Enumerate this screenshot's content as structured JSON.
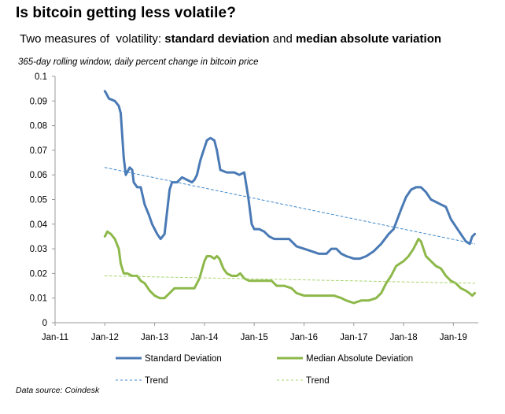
{
  "header": {
    "title": "Is bitcoin getting less volatile?",
    "subtitle_prefix": "Two measures of  volatility: ",
    "subtitle_bold1": "standard deviation",
    "subtitle_mid": " and ",
    "subtitle_bold2": "median absolute variation",
    "note": "365-day rolling window, daily percent change in bitcoin price",
    "source": "Data source: Coindesk"
  },
  "chart_data": {
    "type": "line",
    "title": "Is bitcoin getting less volatile?",
    "subtitle": "Two measures of  volatility: standard deviation and median absolute variation",
    "x_ticks": [
      "Jan-11",
      "Jan-12",
      "Jan-13",
      "Jan-14",
      "Jan-15",
      "Jan-16",
      "Jan-17",
      "Jan-18",
      "Jan-19"
    ],
    "xlim": [
      2011.0,
      2019.5
    ],
    "y_ticks": [
      "0",
      "0.01",
      "0.02",
      "0.03",
      "0.04",
      "0.05",
      "0.06",
      "0.07",
      "0.08",
      "0.09",
      "0.1"
    ],
    "ylim": [
      0,
      0.1
    ],
    "grid": false,
    "legend_position": "bottom",
    "colors": {
      "std": "#4a7ab5",
      "mad": "#8db84a",
      "std_trend": "#3f87c9",
      "mad_trend": "#a9d46e"
    },
    "series": [
      {
        "name": "Standard Deviation",
        "points": [
          [
            2012.0,
            0.094
          ],
          [
            2012.03,
            0.093
          ],
          [
            2012.08,
            0.091
          ],
          [
            2012.2,
            0.09
          ],
          [
            2012.28,
            0.088
          ],
          [
            2012.32,
            0.085
          ],
          [
            2012.38,
            0.067
          ],
          [
            2012.42,
            0.06
          ],
          [
            2012.5,
            0.063
          ],
          [
            2012.55,
            0.062
          ],
          [
            2012.58,
            0.057
          ],
          [
            2012.65,
            0.055
          ],
          [
            2012.72,
            0.055
          ],
          [
            2012.8,
            0.048
          ],
          [
            2012.88,
            0.044
          ],
          [
            2012.95,
            0.04
          ],
          [
            2013.05,
            0.036
          ],
          [
            2013.12,
            0.034
          ],
          [
            2013.2,
            0.036
          ],
          [
            2013.25,
            0.045
          ],
          [
            2013.3,
            0.054
          ],
          [
            2013.35,
            0.057
          ],
          [
            2013.45,
            0.057
          ],
          [
            2013.55,
            0.059
          ],
          [
            2013.65,
            0.058
          ],
          [
            2013.75,
            0.057
          ],
          [
            2013.8,
            0.058
          ],
          [
            2013.85,
            0.06
          ],
          [
            2013.92,
            0.066
          ],
          [
            2014.0,
            0.071
          ],
          [
            2014.05,
            0.074
          ],
          [
            2014.12,
            0.075
          ],
          [
            2014.2,
            0.074
          ],
          [
            2014.25,
            0.07
          ],
          [
            2014.32,
            0.062
          ],
          [
            2014.45,
            0.061
          ],
          [
            2014.6,
            0.061
          ],
          [
            2014.7,
            0.06
          ],
          [
            2014.8,
            0.061
          ],
          [
            2014.88,
            0.051
          ],
          [
            2014.95,
            0.04
          ],
          [
            2015.0,
            0.038
          ],
          [
            2015.1,
            0.038
          ],
          [
            2015.2,
            0.037
          ],
          [
            2015.3,
            0.035
          ],
          [
            2015.4,
            0.034
          ],
          [
            2015.55,
            0.034
          ],
          [
            2015.7,
            0.034
          ],
          [
            2015.85,
            0.031
          ],
          [
            2016.0,
            0.03
          ],
          [
            2016.15,
            0.029
          ],
          [
            2016.3,
            0.028
          ],
          [
            2016.45,
            0.028
          ],
          [
            2016.55,
            0.03
          ],
          [
            2016.65,
            0.03
          ],
          [
            2016.75,
            0.028
          ],
          [
            2016.85,
            0.027
          ],
          [
            2017.0,
            0.026
          ],
          [
            2017.12,
            0.026
          ],
          [
            2017.25,
            0.027
          ],
          [
            2017.4,
            0.029
          ],
          [
            2017.55,
            0.032
          ],
          [
            2017.7,
            0.036
          ],
          [
            2017.8,
            0.038
          ],
          [
            2017.95,
            0.046
          ],
          [
            2018.05,
            0.051
          ],
          [
            2018.15,
            0.054
          ],
          [
            2018.25,
            0.055
          ],
          [
            2018.35,
            0.055
          ],
          [
            2018.45,
            0.053
          ],
          [
            2018.55,
            0.05
          ],
          [
            2018.65,
            0.049
          ],
          [
            2018.75,
            0.048
          ],
          [
            2018.85,
            0.047
          ],
          [
            2018.95,
            0.042
          ],
          [
            2019.05,
            0.039
          ],
          [
            2019.15,
            0.036
          ],
          [
            2019.25,
            0.033
          ],
          [
            2019.33,
            0.032
          ],
          [
            2019.38,
            0.035
          ],
          [
            2019.43,
            0.036
          ]
        ]
      },
      {
        "name": "Median Absolute Deviation",
        "points": [
          [
            2012.0,
            0.035
          ],
          [
            2012.05,
            0.037
          ],
          [
            2012.12,
            0.036
          ],
          [
            2012.2,
            0.034
          ],
          [
            2012.28,
            0.03
          ],
          [
            2012.32,
            0.024
          ],
          [
            2012.38,
            0.02
          ],
          [
            2012.45,
            0.02
          ],
          [
            2012.55,
            0.019
          ],
          [
            2012.65,
            0.019
          ],
          [
            2012.72,
            0.017
          ],
          [
            2012.8,
            0.016
          ],
          [
            2012.9,
            0.013
          ],
          [
            2013.0,
            0.011
          ],
          [
            2013.1,
            0.01
          ],
          [
            2013.2,
            0.01
          ],
          [
            2013.3,
            0.012
          ],
          [
            2013.4,
            0.014
          ],
          [
            2013.55,
            0.014
          ],
          [
            2013.7,
            0.014
          ],
          [
            2013.8,
            0.014
          ],
          [
            2013.9,
            0.018
          ],
          [
            2014.0,
            0.025
          ],
          [
            2014.05,
            0.027
          ],
          [
            2014.12,
            0.027
          ],
          [
            2014.2,
            0.026
          ],
          [
            2014.25,
            0.027
          ],
          [
            2014.3,
            0.026
          ],
          [
            2014.38,
            0.022
          ],
          [
            2014.45,
            0.02
          ],
          [
            2014.55,
            0.019
          ],
          [
            2014.65,
            0.019
          ],
          [
            2014.72,
            0.02
          ],
          [
            2014.8,
            0.018
          ],
          [
            2014.9,
            0.017
          ],
          [
            2015.0,
            0.017
          ],
          [
            2015.2,
            0.017
          ],
          [
            2015.35,
            0.017
          ],
          [
            2015.45,
            0.015
          ],
          [
            2015.6,
            0.015
          ],
          [
            2015.75,
            0.014
          ],
          [
            2015.85,
            0.012
          ],
          [
            2016.0,
            0.011
          ],
          [
            2016.15,
            0.011
          ],
          [
            2016.3,
            0.011
          ],
          [
            2016.45,
            0.011
          ],
          [
            2016.6,
            0.011
          ],
          [
            2016.75,
            0.01
          ],
          [
            2016.85,
            0.009
          ],
          [
            2017.0,
            0.008
          ],
          [
            2017.15,
            0.009
          ],
          [
            2017.3,
            0.009
          ],
          [
            2017.45,
            0.01
          ],
          [
            2017.55,
            0.012
          ],
          [
            2017.65,
            0.016
          ],
          [
            2017.75,
            0.019
          ],
          [
            2017.85,
            0.023
          ],
          [
            2018.0,
            0.025
          ],
          [
            2018.1,
            0.027
          ],
          [
            2018.2,
            0.03
          ],
          [
            2018.25,
            0.032
          ],
          [
            2018.3,
            0.034
          ],
          [
            2018.35,
            0.033
          ],
          [
            2018.45,
            0.027
          ],
          [
            2018.55,
            0.025
          ],
          [
            2018.65,
            0.023
          ],
          [
            2018.75,
            0.022
          ],
          [
            2018.85,
            0.019
          ],
          [
            2018.95,
            0.017
          ],
          [
            2019.05,
            0.016
          ],
          [
            2019.15,
            0.014
          ],
          [
            2019.25,
            0.013
          ],
          [
            2019.32,
            0.012
          ],
          [
            2019.38,
            0.011
          ],
          [
            2019.43,
            0.012
          ]
        ]
      },
      {
        "name": "Trend",
        "trend_of": "Standard Deviation",
        "points": [
          [
            2012.0,
            0.063
          ],
          [
            2019.43,
            0.032
          ]
        ]
      },
      {
        "name": "Trend",
        "trend_of": "Median Absolute Deviation",
        "points": [
          [
            2012.0,
            0.019
          ],
          [
            2019.43,
            0.016
          ]
        ]
      }
    ]
  }
}
